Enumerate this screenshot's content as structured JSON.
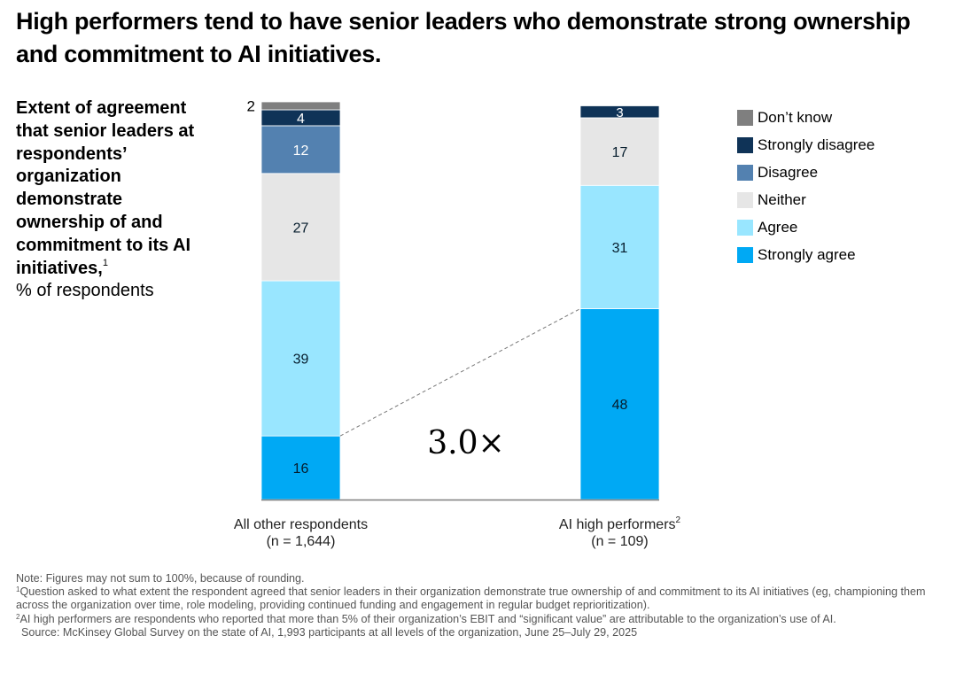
{
  "title": "High performers tend to have senior leaders who demonstrate strong ownership and commitment to AI initiatives.",
  "subtitle": {
    "bold_text": "Extent of agreement that senior leaders at respondents’ organization demonstrate ownership of and commitment to its AI initiatives,",
    "footnote_mark": "1",
    "unit_text": "% of respondents"
  },
  "chart_data": {
    "type": "bar",
    "stacked": true,
    "orientation": "vertical",
    "title": "High performers tend to have senior leaders who demonstrate strong ownership and commitment to AI initiatives.",
    "ylabel": "% of respondents",
    "xlabel": "",
    "ylim": [
      0,
      100
    ],
    "grid": false,
    "legend_position": "right",
    "categories": [
      {
        "label": "All other respondents",
        "footnote": "",
        "n_label": "(n = 1,644)"
      },
      {
        "label": "AI high performers",
        "footnote": "2",
        "n_label": "(n = 109)"
      }
    ],
    "series": [
      {
        "name": "Strongly agree",
        "color": "#00a9f4",
        "label_color": "#051c2c",
        "values": [
          16,
          48
        ]
      },
      {
        "name": "Agree",
        "color": "#99e6ff",
        "label_color": "#051c2c",
        "values": [
          39,
          31
        ]
      },
      {
        "name": "Neither",
        "color": "#e6e6e6",
        "label_color": "#051c2c",
        "values": [
          27,
          17
        ]
      },
      {
        "name": "Disagree",
        "color": "#5381b0",
        "label_color": "#ffffff",
        "values": [
          12,
          0
        ]
      },
      {
        "name": "Strongly disagree",
        "color": "#0f3357",
        "label_color": "#ffffff",
        "values": [
          4,
          3
        ]
      },
      {
        "name": "Don’t know",
        "color": "#7f7f7f",
        "label_color": "#051c2c",
        "values": [
          2,
          0
        ]
      }
    ],
    "legend_order": [
      "Don’t know",
      "Strongly disagree",
      "Disagree",
      "Neither",
      "Agree",
      "Strongly agree"
    ],
    "annotation": {
      "text": "3.0×",
      "description": "Dashed connector between the tops of the 'Strongly agree' segments",
      "from": {
        "category": 0,
        "series": "Strongly agree"
      },
      "to": {
        "category": 1,
        "series": "Strongly agree"
      }
    }
  },
  "notes": {
    "note": "Note: Figures may not sum to 100%, because of rounding.",
    "footnote1_mark": "1",
    "footnote1": "Question asked to what extent the respondent agreed that senior leaders in their organization demonstrate true ownership of and commitment to its AI initiatives (eg, championing them across the organization over time, role modeling, providing continued funding and engagement in regular budget reprioritization).",
    "footnote2_mark": "2",
    "footnote2": "AI high performers are respondents who reported that more than 5% of their organization’s EBIT and “significant value” are attributable to the organization’s use of AI.",
    "source": "Source: McKinsey Global Survey on the state of AI, 1,993 participants at all levels of the organization, June 25–July 29, 2025"
  }
}
